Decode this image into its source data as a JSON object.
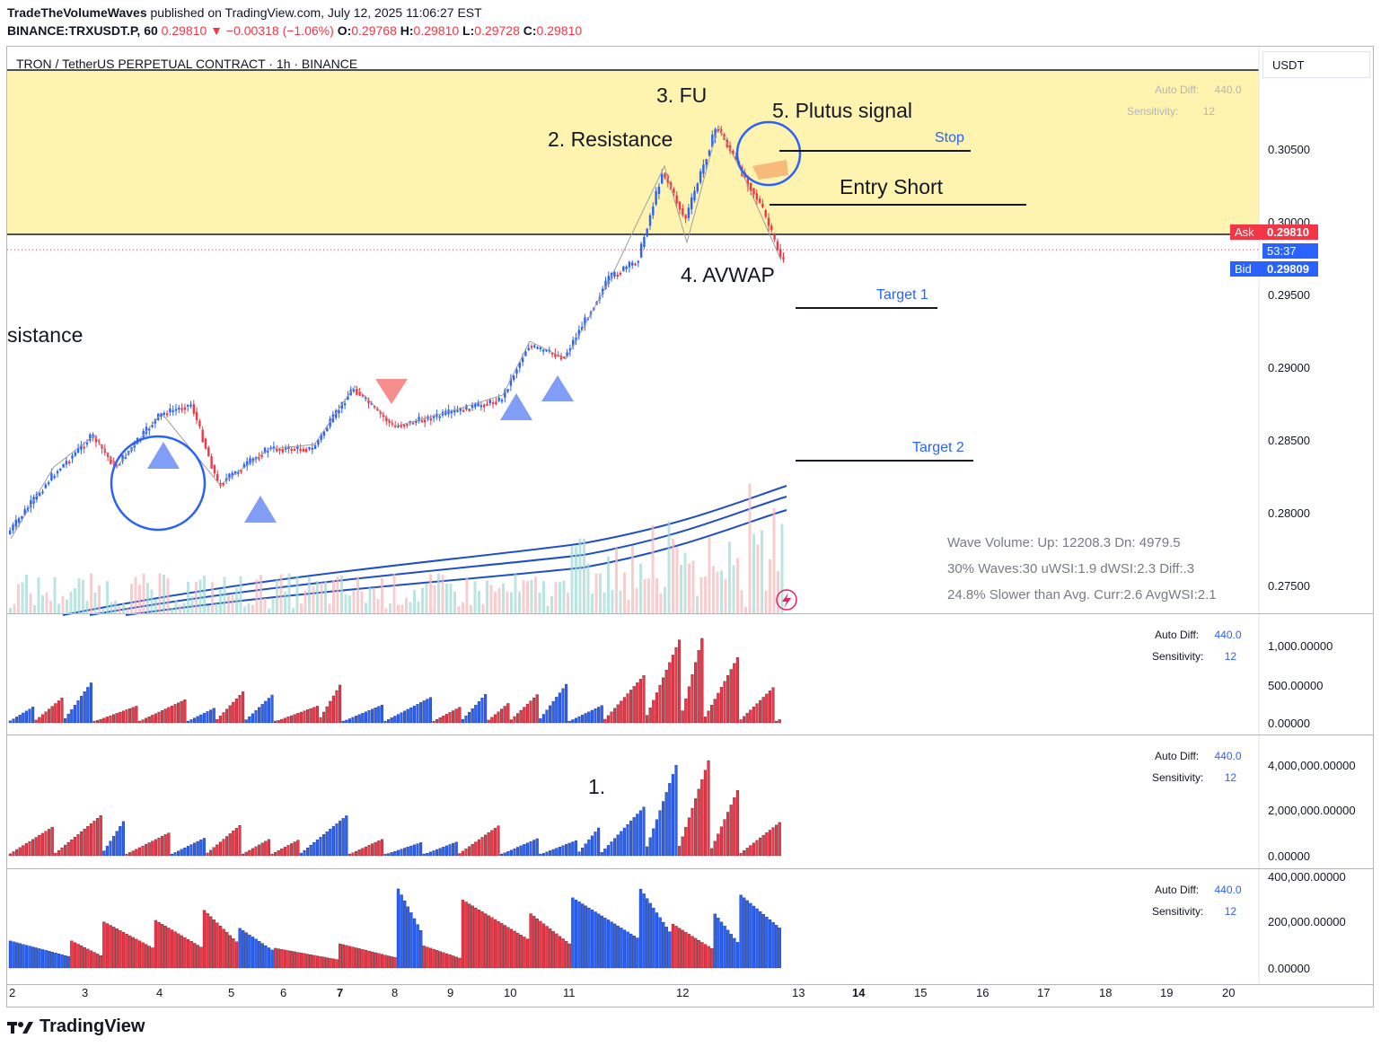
{
  "header": {
    "author": "TradeTheVolumeWaves",
    "published": "published on TradingView.com, July 12, 2025 11:06:27 EST",
    "symbol": "BINANCE:TRXUSDT.P, 60",
    "last": "0.29810",
    "change": "▼ −0.00318 (−1.06%)",
    "o_label": "O:",
    "o": "0.29768",
    "h_label": "H:",
    "h": "0.29810",
    "l_label": "L:",
    "l": "0.29728",
    "c_label": "C:",
    "c": "0.29810"
  },
  "chart": {
    "title": "TRON / TetherUS PERPETUAL CONTRACT · 1h · BINANCE",
    "currency": "USDT",
    "price_ticks": [
      "0.30500",
      "0.30000",
      "0.29500",
      "0.29000",
      "0.28500",
      "0.28000",
      "0.27500"
    ],
    "ask_label": "Ask",
    "ask": "0.29810",
    "countdown": "53:37",
    "bid_label": "Bid",
    "bid": "0.29809",
    "x_ticks": [
      "2",
      "3",
      "4",
      "5",
      "6",
      "7",
      "8",
      "9",
      "10",
      "11",
      "12",
      "13",
      "14",
      "15",
      "16",
      "17",
      "18",
      "19",
      "20"
    ],
    "annotations": {
      "fu": "3. FU",
      "resistance2": "2. Resistance",
      "plutus": "5. Plutus signal",
      "stop": "Stop",
      "entry": "Entry Short",
      "avwap": "4. AVWAP",
      "target1": "Target 1",
      "target2": "Target 2",
      "resistance_left": "sistance",
      "one": "1."
    },
    "wave_info": {
      "line1": "Wave Volume: Up: 12208.3 Dn: 4979.5",
      "line2": "30% Waves:30 uWSI:1.9 dWSI:2.3 Diff:.3",
      "line3": "24.8% Slower than Avg. Curr:2.6 AvgWSI:2.1"
    },
    "settings": {
      "auto_diff_label": "Auto Diff:",
      "auto_diff": "440.0",
      "sensitivity_label": "Sensitivity:",
      "sensitivity": "12"
    },
    "pane1_ticks": [
      "1,000.00000",
      "500.00000",
      "0.00000"
    ],
    "pane2_ticks": [
      "4,000,000.00000",
      "2,000,000.00000",
      "0.00000"
    ],
    "pane3_ticks": [
      "400,000.00000",
      "200,000.00000",
      "0.00000"
    ]
  },
  "colors": {
    "up": "#2962ff",
    "down": "#f23645",
    "zone": "#fff3b0",
    "avwap": "#1e4fc4"
  },
  "footer": {
    "brand": "TradingView"
  }
}
